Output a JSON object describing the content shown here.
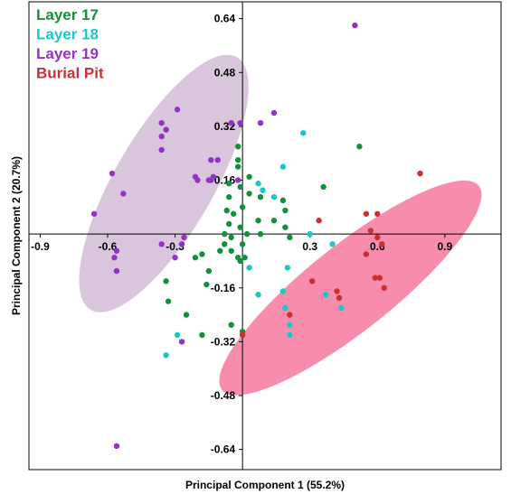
{
  "chart_data": {
    "type": "scatter",
    "xlabel": "Principal Component 1 (55.2%)",
    "ylabel": "Principal Component 2 (20.7%)",
    "xlim": [
      -0.95,
      1.15
    ],
    "ylim": [
      -0.7,
      0.69
    ],
    "x_ticks": [
      -0.9,
      -0.6,
      -0.3,
      0.3,
      0.6,
      0.9
    ],
    "x_tick_labels": [
      "-0.9",
      "-0.6",
      "-0.3",
      "0.3",
      "0.6",
      "0.9"
    ],
    "y_ticks": [
      0.64,
      0.48,
      0.32,
      0.16,
      -0.16,
      -0.32,
      -0.48,
      -0.64
    ],
    "y_tick_labels": [
      "0.64",
      "0.48",
      "0.32",
      "0.16",
      "-0.16",
      "-0.32",
      "-0.48",
      "-0.64"
    ],
    "grid": false,
    "legend_position": "top-left",
    "ellipses": [
      {
        "cx": -0.35,
        "cy": 0.15,
        "rx": 0.65,
        "ry": 0.22,
        "angle_deg": -60,
        "color": "#d9c6dc"
      },
      {
        "cx": 0.48,
        "cy": -0.16,
        "rx": 0.73,
        "ry": 0.19,
        "angle_deg": -38.5,
        "color": "#f78cad"
      }
    ],
    "series": [
      {
        "name": "Layer 17",
        "color": "#11913b",
        "points": [
          [
            0.52,
            0.26
          ],
          [
            0.36,
            0.14
          ],
          [
            -0.02,
            0.26
          ],
          [
            -0.02,
            0.22
          ],
          [
            -0.02,
            0.2
          ],
          [
            -0.01,
            0.14
          ],
          [
            0.03,
            0.17
          ],
          [
            0.03,
            0.12
          ],
          [
            0.08,
            0.11
          ],
          [
            -0.06,
            0.15
          ],
          [
            0.18,
            0.1
          ],
          [
            -0.06,
            0.11
          ],
          [
            -0.07,
            0.07
          ],
          [
            -0.04,
            0.06
          ],
          [
            0.19,
            0.07
          ],
          [
            0.0,
            0.08
          ],
          [
            0.14,
            0.04
          ],
          [
            0.07,
            0.04
          ],
          [
            0.19,
            0.02
          ],
          [
            -0.06,
            0.03
          ],
          [
            -0.01,
            0.02
          ],
          [
            0.02,
            0.0
          ],
          [
            -0.08,
            0.0
          ],
          [
            0.08,
            0.0
          ],
          [
            -0.05,
            -0.01
          ],
          [
            0.21,
            -0.01
          ],
          [
            -0.08,
            -0.03
          ],
          [
            0.0,
            -0.03
          ],
          [
            -0.05,
            -0.05
          ],
          [
            -0.02,
            -0.07
          ],
          [
            -0.1,
            -0.05
          ],
          [
            0.01,
            -0.07
          ],
          [
            -0.18,
            -0.06
          ],
          [
            -0.21,
            -0.07
          ],
          [
            -0.15,
            -0.11
          ],
          [
            -0.34,
            -0.14
          ],
          [
            -0.16,
            -0.15
          ],
          [
            -0.33,
            -0.2
          ],
          [
            -0.25,
            -0.24
          ],
          [
            -0.05,
            -0.27
          ],
          [
            -0.18,
            -0.3
          ],
          [
            0.0,
            -0.29
          ],
          [
            -0.01,
            -0.08
          ]
        ]
      },
      {
        "name": "Layer 18",
        "color": "#1cc6c6",
        "points": [
          [
            0.27,
            0.3
          ],
          [
            0.18,
            0.2
          ],
          [
            0.07,
            0.15
          ],
          [
            0.09,
            0.13
          ],
          [
            0.14,
            0.11
          ],
          [
            0.3,
            0.0
          ],
          [
            0.03,
            -0.1
          ],
          [
            0.2,
            -0.1
          ],
          [
            0.4,
            -0.03
          ],
          [
            0.07,
            -0.18
          ],
          [
            0.18,
            -0.17
          ],
          [
            0.37,
            -0.18
          ],
          [
            0.44,
            -0.22
          ],
          [
            0.19,
            -0.22
          ],
          [
            0.21,
            -0.27
          ],
          [
            0.21,
            -0.3
          ],
          [
            -0.29,
            -0.3
          ],
          [
            -0.34,
            -0.36
          ]
        ]
      },
      {
        "name": "Layer 19",
        "color": "#9432c8",
        "points": [
          [
            0.5,
            0.62
          ],
          [
            -0.29,
            0.37
          ],
          [
            0.14,
            0.36
          ],
          [
            -0.36,
            0.33
          ],
          [
            -0.34,
            0.31
          ],
          [
            -0.36,
            0.29
          ],
          [
            -0.36,
            0.25
          ],
          [
            0.08,
            0.33
          ],
          [
            -0.01,
            0.33
          ],
          [
            -0.05,
            0.33
          ],
          [
            -0.02,
            0.16
          ],
          [
            -0.2,
            0.16
          ],
          [
            -0.14,
            0.16
          ],
          [
            -0.15,
            0.16
          ],
          [
            -0.13,
            0.17
          ],
          [
            -0.21,
            0.17
          ],
          [
            -0.14,
            0.22
          ],
          [
            -0.11,
            0.22
          ],
          [
            -0.58,
            0.18
          ],
          [
            -0.53,
            0.12
          ],
          [
            -0.66,
            0.06
          ],
          [
            -0.26,
            -0.01
          ],
          [
            -0.27,
            -0.03
          ],
          [
            -0.36,
            -0.03
          ],
          [
            -0.3,
            -0.07
          ],
          [
            -0.56,
            -0.05
          ],
          [
            -0.57,
            -0.07
          ],
          [
            -0.56,
            -0.11
          ],
          [
            -0.27,
            -0.32
          ],
          [
            -0.56,
            -0.63
          ]
        ]
      },
      {
        "name": "Burial Pit",
        "color": "#cc2f2f",
        "points": [
          [
            0.79,
            0.18
          ],
          [
            0.34,
            0.04
          ],
          [
            0.55,
            0.06
          ],
          [
            0.6,
            0.06
          ],
          [
            0.57,
            0.01
          ],
          [
            0.6,
            -0.01
          ],
          [
            0.62,
            -0.03
          ],
          [
            0.55,
            -0.06
          ],
          [
            0.59,
            -0.13
          ],
          [
            0.61,
            -0.13
          ],
          [
            0.63,
            -0.16
          ],
          [
            0.31,
            -0.14
          ],
          [
            0.42,
            -0.17
          ],
          [
            0.43,
            -0.19
          ],
          [
            0.0,
            -0.3
          ],
          [
            0.21,
            -0.24
          ]
        ]
      }
    ]
  }
}
